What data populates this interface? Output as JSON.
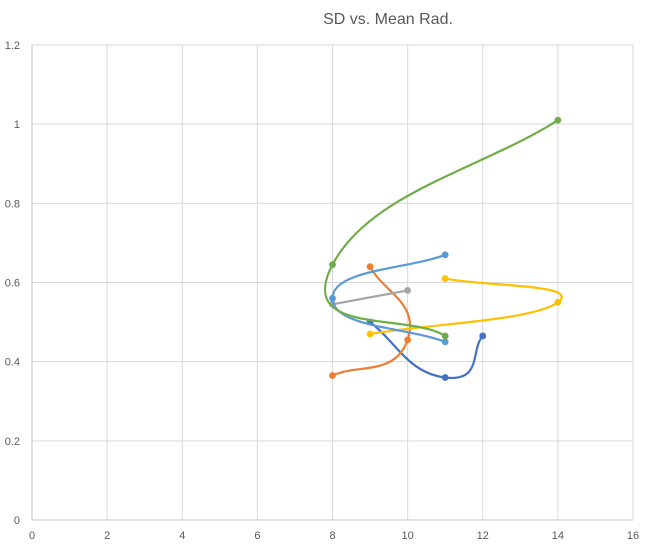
{
  "chart_data": {
    "type": "scatter",
    "title": "SD vs. Mean Rad.",
    "xlabel": "",
    "ylabel": "",
    "xlim": [
      0,
      16
    ],
    "ylim": [
      0,
      1.2
    ],
    "x_ticks": [
      0,
      2,
      4,
      6,
      8,
      10,
      12,
      14,
      16
    ],
    "y_ticks": [
      0,
      0.2,
      0.4,
      0.6,
      0.8,
      1,
      1.2
    ],
    "grid": true,
    "smooth_lines": true,
    "series": [
      {
        "color": "#4472C4",
        "points": [
          [
            9,
            0.5
          ],
          [
            11,
            0.36
          ],
          [
            12,
            0.465
          ]
        ]
      },
      {
        "color": "#ED7D31",
        "points": [
          [
            8,
            0.365
          ],
          [
            10,
            0.455
          ],
          [
            9,
            0.64
          ]
        ]
      },
      {
        "color": "#A5A5A5",
        "points": [
          [
            8,
            0.545
          ],
          [
            10,
            0.58
          ]
        ]
      },
      {
        "color": "#FFC000",
        "points": [
          [
            9,
            0.47
          ],
          [
            14,
            0.55
          ],
          [
            11,
            0.61
          ]
        ]
      },
      {
        "color": "#5B9BD5",
        "points": [
          [
            11,
            0.67
          ],
          [
            8,
            0.56
          ],
          [
            11,
            0.45
          ]
        ]
      },
      {
        "color": "#70AD47",
        "points": [
          [
            14,
            1.01
          ],
          [
            8,
            0.645
          ],
          [
            11,
            0.465
          ]
        ]
      }
    ]
  }
}
